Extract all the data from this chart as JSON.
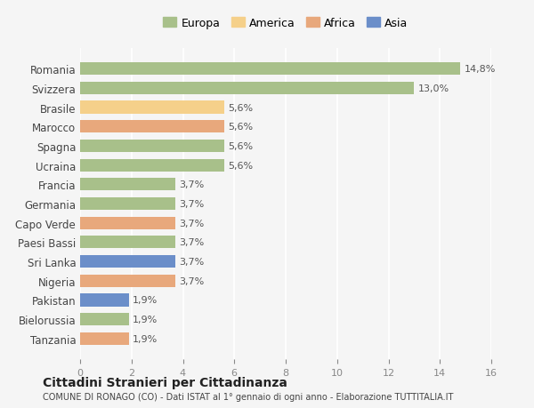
{
  "categories": [
    "Tanzania",
    "Bielorussia",
    "Pakistan",
    "Nigeria",
    "Sri Lanka",
    "Paesi Bassi",
    "Capo Verde",
    "Germania",
    "Francia",
    "Ucraina",
    "Spagna",
    "Marocco",
    "Brasile",
    "Svizzera",
    "Romania"
  ],
  "values": [
    1.9,
    1.9,
    1.9,
    3.7,
    3.7,
    3.7,
    3.7,
    3.7,
    3.7,
    5.6,
    5.6,
    5.6,
    5.6,
    13.0,
    14.8
  ],
  "colors": [
    "#e8a87c",
    "#a8c08a",
    "#6b8ec9",
    "#e8a87c",
    "#6b8ec9",
    "#a8c08a",
    "#e8a87c",
    "#a8c08a",
    "#a8c08a",
    "#a8c08a",
    "#a8c08a",
    "#e8a87c",
    "#f5d08a",
    "#a8c08a",
    "#a8c08a"
  ],
  "labels": [
    "1,9%",
    "1,9%",
    "1,9%",
    "3,7%",
    "3,7%",
    "3,7%",
    "3,7%",
    "3,7%",
    "3,7%",
    "5,6%",
    "5,6%",
    "5,6%",
    "5,6%",
    "13,0%",
    "14,8%"
  ],
  "legend": [
    {
      "label": "Europa",
      "color": "#a8c08a"
    },
    {
      "label": "America",
      "color": "#f5d08a"
    },
    {
      "label": "Africa",
      "color": "#e8a87c"
    },
    {
      "label": "Asia",
      "color": "#6b8ec9"
    }
  ],
  "title": "Cittadini Stranieri per Cittadinanza",
  "subtitle": "COMUNE DI RONAGO (CO) - Dati ISTAT al 1° gennaio di ogni anno - Elaborazione TUTTITALIA.IT",
  "xlim": [
    0,
    16
  ],
  "xticks": [
    0,
    2,
    4,
    6,
    8,
    10,
    12,
    14,
    16
  ],
  "background_color": "#f5f5f5",
  "grid_color": "#ffffff",
  "bar_height": 0.65
}
